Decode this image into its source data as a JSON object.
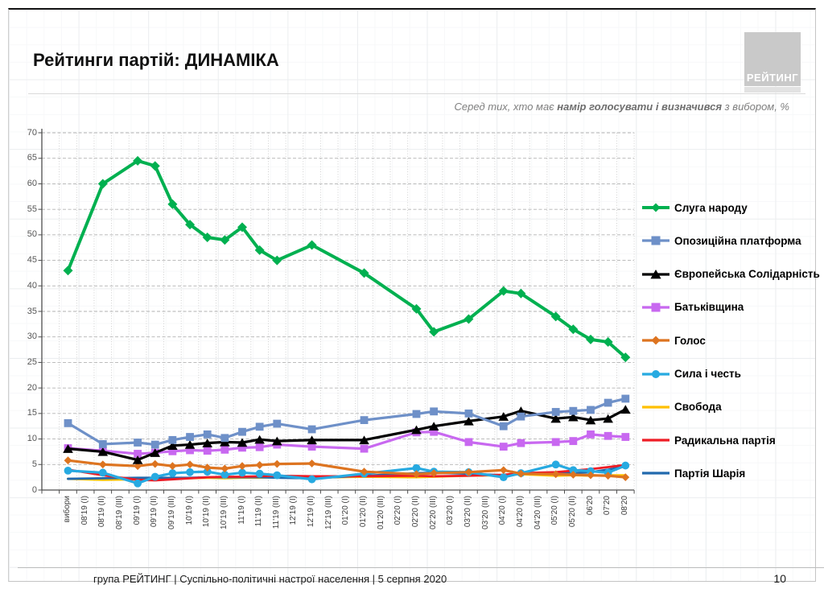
{
  "page": {
    "title": "Рейтинги партій: ДИНАМІКА",
    "subtitle_pre": "Серед тих, хто має ",
    "subtitle_bold": "намір голосувати і визначився",
    "subtitle_post": " з вибором, %",
    "logo_text": "РЕЙТИНГ",
    "footer": "група РЕЙТИНГ | Суспільно-політичні настрої населення  | 5 серпня 2020",
    "page_number": "10"
  },
  "chart_data": {
    "type": "line",
    "title": "Рейтинги партій: ДИНАМІКА",
    "unit": "%",
    "grid": true,
    "legend_position": "right",
    "y_axis": {
      "min": 0,
      "max": 70,
      "step": 5
    },
    "categories": [
      "вибори",
      "08'19 (I)",
      "08'19 (II)",
      "08'19 (III)",
      "09'19 (I)",
      "09'19 (II)",
      "09'19 (III)",
      "10'19 (I)",
      "10'19 (II)",
      "10'19 (III)",
      "11'19 (I)",
      "11'19 (II)",
      "11'19 (III)",
      "12'19 (I)",
      "12'19 (II)",
      "12'19 (III)",
      "01'20 (I)",
      "01'20 (II)",
      "01'20 (III)",
      "02'20 (I)",
      "02'20 (II)",
      "02'20 (III)",
      "03'20 (I)",
      "03'20 (II)",
      "03'20 (III)",
      "04'20 (I)",
      "04'20 (II)",
      "04'20 (III)",
      "05'20 (I)",
      "05'20 (II)",
      "06'20",
      "07'20",
      "08'20"
    ],
    "series": [
      {
        "name": "Слуга народу",
        "color": "#00B050",
        "marker": "diamond",
        "values": [
          43,
          null,
          60,
          null,
          64.5,
          63.5,
          56,
          52,
          49.5,
          49,
          51.5,
          47,
          45,
          null,
          48,
          null,
          null,
          42.5,
          null,
          null,
          35.5,
          31,
          null,
          33.5,
          null,
          39,
          38.5,
          null,
          34,
          31.5,
          29.5,
          29,
          26
        ]
      },
      {
        "name": "Опозиційна платформа",
        "color": "#6E90C8",
        "marker": "square",
        "values": [
          13.1,
          null,
          9,
          null,
          9.3,
          8.9,
          9.8,
          10.4,
          10.9,
          10.2,
          11.4,
          12.4,
          13,
          null,
          11.9,
          null,
          null,
          13.7,
          null,
          null,
          14.9,
          15.4,
          null,
          15,
          null,
          12.5,
          14.4,
          null,
          15.3,
          15.5,
          15.7,
          17.1,
          17.9
        ]
      },
      {
        "name": "Європейська Солідарність",
        "color": "#000000",
        "marker": "triangle",
        "values": [
          8.1,
          null,
          7.5,
          null,
          5.9,
          7.3,
          8.7,
          8.9,
          9.2,
          9.4,
          9.3,
          9.9,
          9.6,
          null,
          9.8,
          null,
          null,
          9.8,
          null,
          null,
          11.8,
          12.5,
          null,
          13.5,
          null,
          14.4,
          15.5,
          null,
          14,
          14.3,
          13.7,
          14,
          15.8
        ]
      },
      {
        "name": "Батьківщина",
        "color": "#C868F0",
        "marker": "square",
        "values": [
          8.2,
          null,
          7.7,
          null,
          7.1,
          7.3,
          7.6,
          7.8,
          7.7,
          7.9,
          8.3,
          8.4,
          8.9,
          null,
          8.5,
          null,
          null,
          8.1,
          null,
          null,
          11.3,
          11.4,
          null,
          9.4,
          null,
          8.5,
          9.2,
          null,
          9.4,
          9.6,
          10.9,
          10.6,
          10.4
        ]
      },
      {
        "name": "Голос",
        "color": "#DD7420",
        "marker": "diamond",
        "values": [
          5.8,
          null,
          5,
          null,
          4.7,
          5.1,
          4.7,
          5,
          4.4,
          4.2,
          4.7,
          4.9,
          5.1,
          null,
          5.2,
          null,
          null,
          3.6,
          null,
          null,
          3.1,
          3.3,
          null,
          3.5,
          null,
          3.9,
          3.2,
          null,
          3.1,
          3,
          2.9,
          2.8,
          2.5
        ]
      },
      {
        "name": "Сила і честь",
        "color": "#27AAE1",
        "marker": "circle",
        "values": [
          3.8,
          null,
          3.4,
          null,
          1.3,
          2.6,
          3.3,
          3.5,
          3.6,
          3,
          3.4,
          3.2,
          2.9,
          null,
          2.1,
          null,
          null,
          3.2,
          null,
          null,
          4.3,
          3.6,
          null,
          3.5,
          null,
          2.5,
          3.3,
          null,
          5,
          3.9,
          3.7,
          3.4,
          4.8
        ]
      },
      {
        "name": "Свобода",
        "color": "#FFC000",
        "marker": "none",
        "values": [
          2.2,
          null,
          2,
          null,
          2.1,
          2.2,
          2.2,
          2.3,
          2.4,
          2.3,
          2.4,
          2.4,
          2.5,
          null,
          2.4,
          null,
          null,
          2.6,
          null,
          null,
          2.5,
          2.6,
          null,
          2.8,
          null,
          2.9,
          3.1,
          null,
          2.8,
          2.9,
          2.8,
          2.9,
          2.9
        ]
      },
      {
        "name": "Радикальна партія",
        "color": "#EE1C25",
        "marker": "none",
        "values": [
          4,
          null,
          2.9,
          null,
          2,
          1.9,
          2.1,
          2.3,
          2.5,
          2.6,
          2.6,
          2.7,
          2.8,
          null,
          2.7,
          null,
          null,
          2.7,
          null,
          null,
          2.8,
          2.7,
          null,
          2.8,
          null,
          3,
          3.3,
          null,
          3.5,
          3.8,
          4.1,
          4.5,
          4.9
        ]
      },
      {
        "name": "Партія Шарія",
        "color": "#2169AD",
        "marker": "none",
        "values": [
          2.2,
          null,
          2.3,
          null,
          2.4,
          2.4,
          2.4,
          2.4,
          2.5,
          2.5,
          2.5,
          2.5,
          2.4,
          null,
          2.3,
          null,
          null,
          2.8,
          null,
          null,
          3.3,
          3.4,
          null,
          3.2,
          null,
          2.9,
          3.2,
          null,
          3.4,
          3.3,
          3.5,
          4,
          4.6
        ]
      }
    ]
  }
}
